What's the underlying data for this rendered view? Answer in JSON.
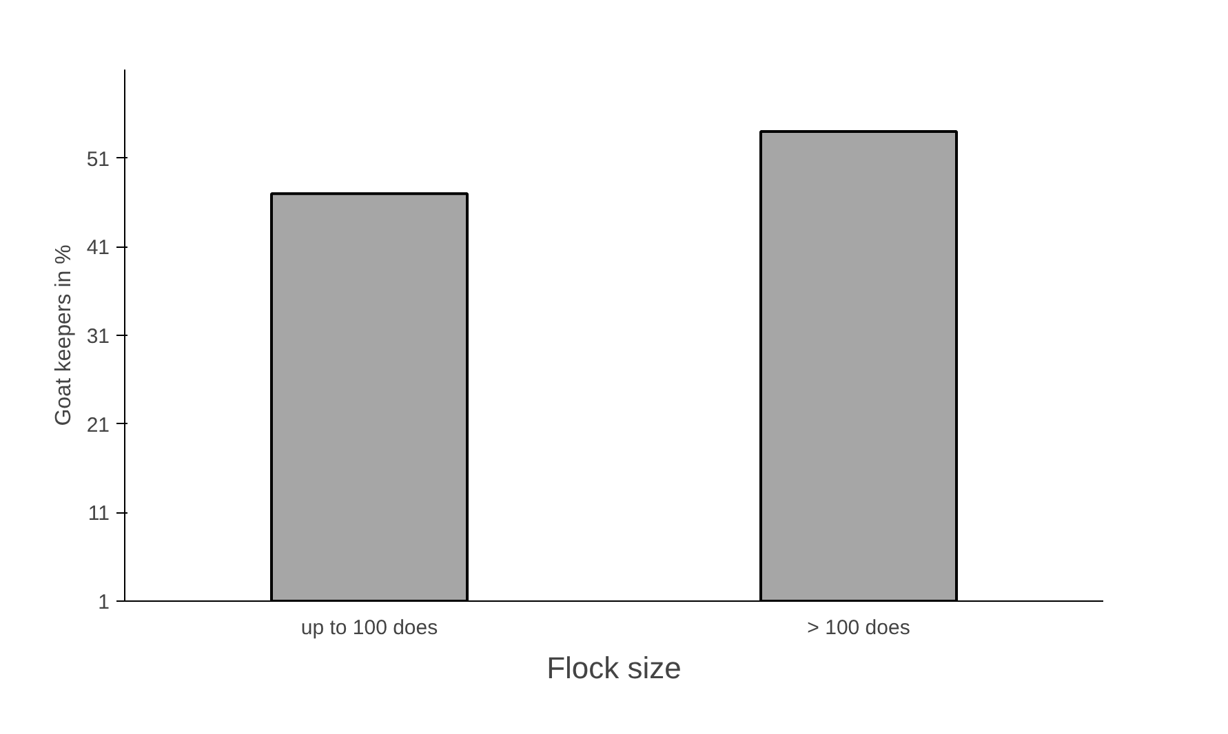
{
  "chart_data": {
    "type": "bar",
    "xlabel": "Flock size",
    "ylabel": "Goat keepers in %",
    "categories": [
      "up to 100 does",
      "> 100 does"
    ],
    "values": [
      47,
      54
    ],
    "color": "#a6a6a6",
    "ylim": [
      1,
      61
    ],
    "yticks": [
      1,
      11,
      21,
      31,
      41,
      51
    ],
    "grid": false
  }
}
